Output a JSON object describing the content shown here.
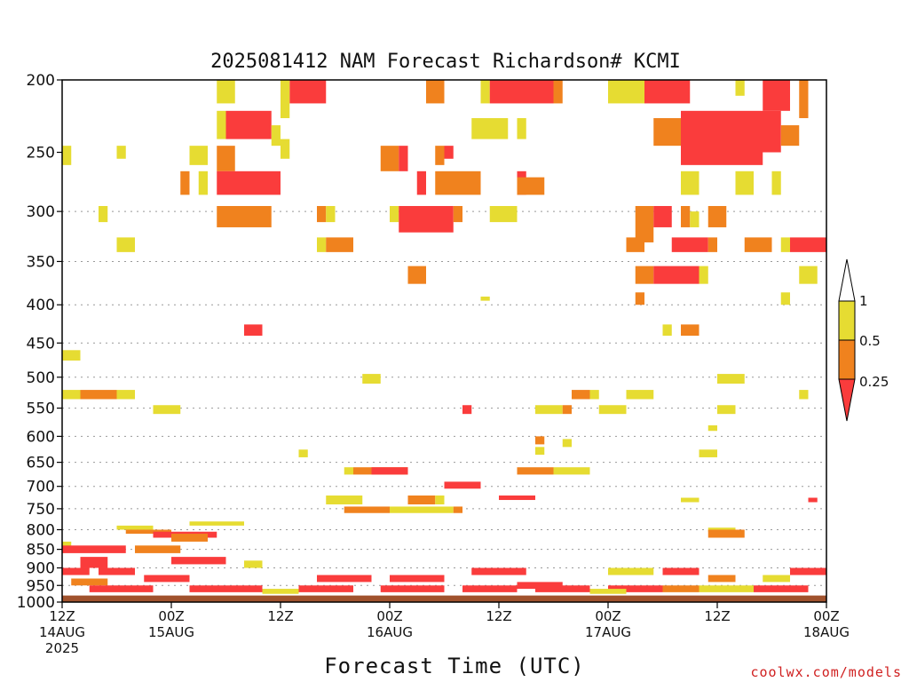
{
  "chart_data": {
    "type": "heatmap",
    "title": "2025081412 NAM Forecast Richardson# KCMI",
    "xlabel": "Forecast Time (UTC)",
    "credit": "coolwx.com/models",
    "y_ticks": [
      200,
      250,
      300,
      350,
      400,
      450,
      500,
      550,
      600,
      650,
      700,
      750,
      800,
      850,
      900,
      950,
      1000
    ],
    "ylim": [
      200,
      1000
    ],
    "y_gridlines": [
      300,
      350,
      400,
      450,
      500,
      550,
      600,
      650,
      700,
      750,
      800,
      850,
      900,
      950,
      1000
    ],
    "xlim": [
      0,
      84
    ],
    "x_ticks": [
      {
        "hour": 0,
        "line1": "12Z",
        "line2": "14AUG",
        "line3": "2025"
      },
      {
        "hour": 12,
        "line1": "00Z",
        "line2": "15AUG",
        "line3": ""
      },
      {
        "hour": 24,
        "line1": "12Z",
        "line2": "",
        "line3": ""
      },
      {
        "hour": 36,
        "line1": "00Z",
        "line2": "16AUG",
        "line3": ""
      },
      {
        "hour": 48,
        "line1": "12Z",
        "line2": "",
        "line3": ""
      },
      {
        "hour": 60,
        "line1": "00Z",
        "line2": "17AUG",
        "line3": ""
      },
      {
        "hour": 72,
        "line1": "12Z",
        "line2": "",
        "line3": ""
      },
      {
        "hour": 84,
        "line1": "00Z",
        "line2": "18AUG",
        "line3": ""
      }
    ],
    "colorbar": {
      "labels": [
        "1",
        "0.5",
        "0.25"
      ],
      "colors": {
        "yellow": "#e6dc32",
        "orange": "#f0821e",
        "red": "#fa3c3c",
        "ground": "#a0522d"
      }
    },
    "ground_level": 980,
    "cells": [
      [
        "y",
        17,
        19,
        200,
        215
      ],
      [
        "r",
        25,
        29,
        200,
        215
      ],
      [
        "y",
        24,
        25,
        200,
        225
      ],
      [
        "o",
        40,
        42,
        200,
        215
      ],
      [
        "y",
        46,
        47,
        200,
        215
      ],
      [
        "r",
        47,
        54,
        200,
        215
      ],
      [
        "o",
        54,
        55,
        200,
        215
      ],
      [
        "y",
        60,
        64,
        200,
        215
      ],
      [
        "r",
        64,
        69,
        200,
        215
      ],
      [
        "y",
        74,
        75,
        200,
        210
      ],
      [
        "r",
        77,
        80,
        200,
        220
      ],
      [
        "o",
        81,
        82,
        200,
        225
      ],
      [
        "r",
        18,
        23,
        220,
        240
      ],
      [
        "y",
        17,
        18,
        220,
        240
      ],
      [
        "y",
        23,
        24,
        230,
        245
      ],
      [
        "y",
        45,
        49,
        225,
        240
      ],
      [
        "y",
        50,
        51,
        225,
        240
      ],
      [
        "o",
        65,
        68,
        225,
        245
      ],
      [
        "r",
        68,
        79,
        220,
        250
      ],
      [
        "o",
        79,
        81,
        230,
        245
      ],
      [
        "y",
        0,
        1,
        245,
        260
      ],
      [
        "y",
        6,
        7,
        245,
        255
      ],
      [
        "y",
        14,
        16,
        245,
        260
      ],
      [
        "o",
        17,
        19,
        245,
        265
      ],
      [
        "o",
        35,
        37,
        245,
        265
      ],
      [
        "r",
        37,
        38,
        245,
        265
      ],
      [
        "o",
        41,
        42,
        245,
        260
      ],
      [
        "r",
        42,
        43,
        245,
        255
      ],
      [
        "r",
        68,
        77,
        245,
        260
      ],
      [
        "y",
        24,
        25,
        240,
        255
      ],
      [
        "r",
        17,
        24,
        265,
        285
      ],
      [
        "o",
        13,
        14,
        265,
        285
      ],
      [
        "y",
        15,
        16,
        265,
        285
      ],
      [
        "r",
        39,
        40,
        265,
        285
      ],
      [
        "o",
        41,
        46,
        265,
        285
      ],
      [
        "r",
        50,
        51,
        265,
        285
      ],
      [
        "o",
        50,
        53,
        270,
        285
      ],
      [
        "y",
        68,
        70,
        265,
        285
      ],
      [
        "y",
        74,
        76,
        265,
        285
      ],
      [
        "y",
        78,
        79,
        265,
        285
      ],
      [
        "o",
        17,
        23,
        295,
        315
      ],
      [
        "y",
        4,
        5,
        295,
        310
      ],
      [
        "o",
        28,
        29,
        295,
        310
      ],
      [
        "y",
        29,
        30,
        295,
        310
      ],
      [
        "y",
        36,
        37,
        295,
        310
      ],
      [
        "r",
        37,
        43,
        295,
        320
      ],
      [
        "o",
        43,
        44,
        295,
        310
      ],
      [
        "y",
        47,
        50,
        295,
        310
      ],
      [
        "o",
        63,
        65,
        295,
        330
      ],
      [
        "r",
        65,
        67,
        295,
        315
      ],
      [
        "o",
        68,
        69,
        295,
        315
      ],
      [
        "y",
        69,
        70,
        300,
        315
      ],
      [
        "o",
        71,
        73,
        295,
        315
      ],
      [
        "y",
        6,
        8,
        325,
        340
      ],
      [
        "y",
        28,
        29,
        325,
        340
      ],
      [
        "o",
        29,
        32,
        325,
        340
      ],
      [
        "o",
        62,
        64,
        325,
        340
      ],
      [
        "r",
        67,
        71,
        325,
        340
      ],
      [
        "o",
        71,
        72,
        325,
        340
      ],
      [
        "o",
        75,
        78,
        325,
        340
      ],
      [
        "y",
        79,
        80,
        325,
        340
      ],
      [
        "r",
        80,
        84,
        325,
        340
      ],
      [
        "o",
        38,
        40,
        355,
        375
      ],
      [
        "o",
        63,
        65,
        355,
        375
      ],
      [
        "r",
        65,
        70,
        355,
        375
      ],
      [
        "y",
        70,
        71,
        355,
        375
      ],
      [
        "y",
        81,
        83,
        355,
        375
      ],
      [
        "o",
        63,
        64,
        385,
        400
      ],
      [
        "y",
        46,
        47,
        390,
        395
      ],
      [
        "y",
        79,
        80,
        385,
        400
      ],
      [
        "r",
        20,
        22,
        425,
        440
      ],
      [
        "y",
        66,
        67,
        425,
        440
      ],
      [
        "o",
        68,
        70,
        425,
        440
      ],
      [
        "y",
        0,
        2,
        460,
        475
      ],
      [
        "y",
        33,
        35,
        495,
        510
      ],
      [
        "y",
        72,
        75,
        495,
        510
      ],
      [
        "o",
        2,
        6,
        520,
        535
      ],
      [
        "y",
        0,
        2,
        520,
        535
      ],
      [
        "y",
        6,
        8,
        520,
        535
      ],
      [
        "o",
        56,
        58,
        520,
        535
      ],
      [
        "y",
        58,
        59,
        520,
        535
      ],
      [
        "y",
        62,
        65,
        520,
        535
      ],
      [
        "y",
        81,
        82,
        520,
        535
      ],
      [
        "y",
        10,
        13,
        545,
        560
      ],
      [
        "r",
        44,
        45,
        545,
        560
      ],
      [
        "y",
        52,
        55,
        545,
        560
      ],
      [
        "o",
        55,
        56,
        545,
        560
      ],
      [
        "y",
        59,
        62,
        545,
        560
      ],
      [
        "y",
        72,
        74,
        545,
        560
      ],
      [
        "y",
        71,
        72,
        580,
        590
      ],
      [
        "y",
        52,
        53,
        620,
        635
      ],
      [
        "o",
        52,
        53,
        600,
        615
      ],
      [
        "y",
        55,
        56,
        605,
        620
      ],
      [
        "y",
        26,
        27,
        625,
        640
      ],
      [
        "y",
        70,
        72,
        625,
        640
      ],
      [
        "o",
        32,
        38,
        660,
        675
      ],
      [
        "r",
        34,
        38,
        660,
        675
      ],
      [
        "y",
        31,
        32,
        660,
        675
      ],
      [
        "o",
        50,
        54,
        660,
        675
      ],
      [
        "y",
        54,
        58,
        660,
        675
      ],
      [
        "r",
        42,
        46,
        690,
        705
      ],
      [
        "y",
        29,
        33,
        720,
        740
      ],
      [
        "o",
        38,
        41,
        720,
        740
      ],
      [
        "y",
        41,
        42,
        720,
        740
      ],
      [
        "r",
        48,
        52,
        720,
        730
      ],
      [
        "o",
        31,
        36,
        745,
        760
      ],
      [
        "y",
        36,
        43,
        745,
        760
      ],
      [
        "o",
        43,
        44,
        745,
        760
      ],
      [
        "r",
        82,
        83,
        725,
        735
      ],
      [
        "y",
        68,
        70,
        725,
        735
      ],
      [
        "y",
        14,
        20,
        780,
        790
      ],
      [
        "y",
        6,
        10,
        790,
        800
      ],
      [
        "o",
        7,
        12,
        800,
        810
      ],
      [
        "r",
        10,
        17,
        805,
        820
      ],
      [
        "o",
        12,
        16,
        810,
        830
      ],
      [
        "y",
        71,
        74,
        795,
        805
      ],
      [
        "o",
        71,
        75,
        800,
        820
      ],
      [
        "y",
        0,
        1,
        830,
        845
      ],
      [
        "r",
        0,
        7,
        840,
        860
      ],
      [
        "r",
        2,
        5,
        870,
        900
      ],
      [
        "o",
        8,
        13,
        840,
        860
      ],
      [
        "r",
        0,
        3,
        900,
        920
      ],
      [
        "r",
        4,
        8,
        900,
        920
      ],
      [
        "o",
        1,
        5,
        930,
        950
      ],
      [
        "r",
        12,
        18,
        870,
        890
      ],
      [
        "r",
        9,
        14,
        920,
        940
      ],
      [
        "y",
        20,
        22,
        880,
        900
      ],
      [
        "r",
        28,
        34,
        920,
        940
      ],
      [
        "r",
        36,
        42,
        920,
        940
      ],
      [
        "r",
        45,
        51,
        900,
        920
      ],
      [
        "r",
        50,
        55,
        940,
        960
      ],
      [
        "y",
        60,
        65,
        900,
        920
      ],
      [
        "r",
        66,
        70,
        900,
        920
      ],
      [
        "o",
        71,
        74,
        920,
        940
      ],
      [
        "y",
        77,
        80,
        920,
        940
      ],
      [
        "r",
        80,
        84,
        900,
        920
      ],
      [
        "r",
        3,
        10,
        950,
        970
      ],
      [
        "r",
        14,
        22,
        950,
        970
      ],
      [
        "r",
        26,
        32,
        950,
        970
      ],
      [
        "r",
        35,
        42,
        950,
        970
      ],
      [
        "r",
        44,
        50,
        950,
        970
      ],
      [
        "r",
        52,
        58,
        950,
        970
      ],
      [
        "r",
        60,
        66,
        950,
        970
      ],
      [
        "o",
        66,
        70,
        950,
        970
      ],
      [
        "y",
        70,
        76,
        950,
        970
      ],
      [
        "r",
        76,
        82,
        950,
        970
      ],
      [
        "y",
        58,
        62,
        960,
        975
      ],
      [
        "y",
        22,
        26,
        960,
        975
      ]
    ]
  }
}
